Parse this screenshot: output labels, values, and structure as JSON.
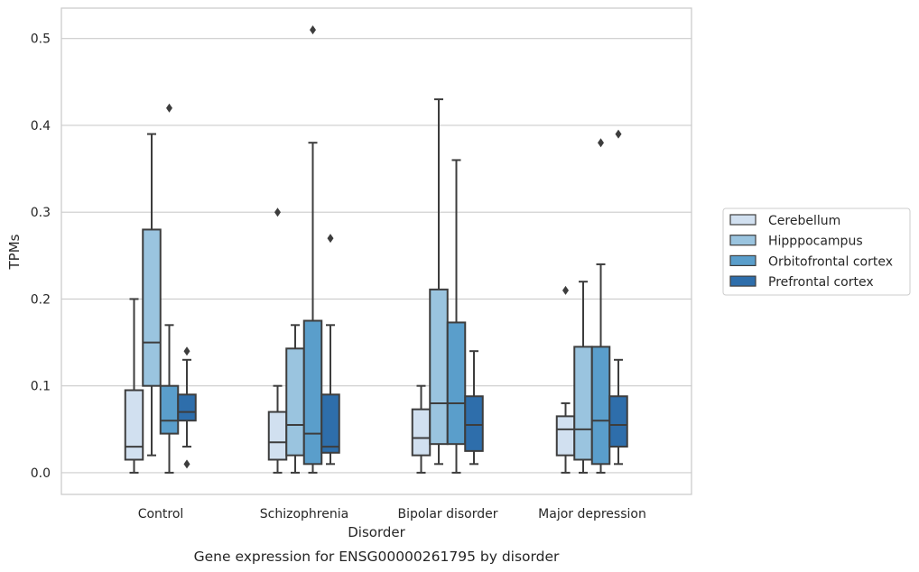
{
  "chart_data": {
    "type": "box",
    "caption": "Gene expression for ENSG00000261795 by disorder",
    "xlabel": "Disorder",
    "ylabel": "TPMs",
    "ylim": [
      -0.025,
      0.535
    ],
    "yticks": [
      0.0,
      0.1,
      0.2,
      0.3,
      0.4,
      0.5
    ],
    "ytick_labels": [
      "0.0",
      "0.1",
      "0.2",
      "0.3",
      "0.4",
      "0.5"
    ],
    "grid": "horizontal",
    "legend_position": "right",
    "categories": [
      "Control",
      "Schizophrenia",
      "Bipolar disorder",
      "Major depression"
    ],
    "series": [
      {
        "name": "Cerebellum",
        "color": "#d1e0f0",
        "boxes": [
          {
            "whislo": 0.0,
            "q1": 0.015,
            "med": 0.03,
            "q3": 0.095,
            "whishi": 0.2,
            "fliers": []
          },
          {
            "whislo": 0.0,
            "q1": 0.015,
            "med": 0.035,
            "q3": 0.07,
            "whishi": 0.1,
            "fliers": [
              0.3
            ]
          },
          {
            "whislo": 0.0,
            "q1": 0.02,
            "med": 0.04,
            "q3": 0.073,
            "whishi": 0.1,
            "fliers": []
          },
          {
            "whislo": 0.0,
            "q1": 0.02,
            "med": 0.05,
            "q3": 0.065,
            "whishi": 0.08,
            "fliers": [
              0.21
            ]
          }
        ]
      },
      {
        "name": "Hipppocampus",
        "color": "#9ac4df",
        "boxes": [
          {
            "whislo": 0.02,
            "q1": 0.1,
            "med": 0.15,
            "q3": 0.28,
            "whishi": 0.39,
            "fliers": []
          },
          {
            "whislo": 0.0,
            "q1": 0.02,
            "med": 0.055,
            "q3": 0.143,
            "whishi": 0.17,
            "fliers": []
          },
          {
            "whislo": 0.01,
            "q1": 0.033,
            "med": 0.08,
            "q3": 0.211,
            "whishi": 0.43,
            "fliers": []
          },
          {
            "whislo": 0.0,
            "q1": 0.015,
            "med": 0.05,
            "q3": 0.145,
            "whishi": 0.22,
            "fliers": []
          }
        ]
      },
      {
        "name": "Orbitofrontal cortex",
        "color": "#5a9ecb",
        "boxes": [
          {
            "whislo": 0.0,
            "q1": 0.045,
            "med": 0.06,
            "q3": 0.1,
            "whishi": 0.17,
            "fliers": [
              0.42
            ]
          },
          {
            "whislo": 0.0,
            "q1": 0.01,
            "med": 0.045,
            "q3": 0.175,
            "whishi": 0.38,
            "fliers": [
              0.51
            ]
          },
          {
            "whislo": 0.0,
            "q1": 0.033,
            "med": 0.08,
            "q3": 0.173,
            "whishi": 0.36,
            "fliers": []
          },
          {
            "whislo": 0.0,
            "q1": 0.01,
            "med": 0.06,
            "q3": 0.145,
            "whishi": 0.24,
            "fliers": [
              0.38
            ]
          }
        ]
      },
      {
        "name": "Prefrontal cortex",
        "color": "#2e6eab",
        "boxes": [
          {
            "whislo": 0.03,
            "q1": 0.06,
            "med": 0.07,
            "q3": 0.09,
            "whishi": 0.13,
            "fliers": [
              0.14,
              0.01
            ]
          },
          {
            "whislo": 0.01,
            "q1": 0.023,
            "med": 0.03,
            "q3": 0.09,
            "whishi": 0.17,
            "fliers": [
              0.27
            ]
          },
          {
            "whislo": 0.01,
            "q1": 0.025,
            "med": 0.055,
            "q3": 0.088,
            "whishi": 0.14,
            "fliers": []
          },
          {
            "whislo": 0.01,
            "q1": 0.03,
            "med": 0.055,
            "q3": 0.088,
            "whishi": 0.13,
            "fliers": [
              0.39
            ]
          }
        ]
      }
    ]
  }
}
